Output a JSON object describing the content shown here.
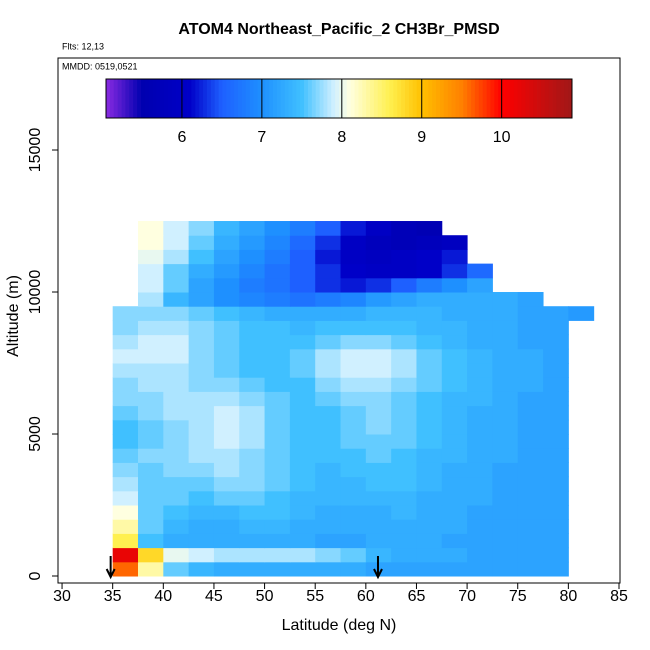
{
  "chart_data": {
    "type": "heatmap",
    "title": "ATOM4 Northeast_Pacific_2 CH3Br_PMSD",
    "subtitle": [
      "Flts: 12,13",
      "MMDD: 0519,0521"
    ],
    "x_label": "Latitude (deg N)",
    "y_label": "Altitude (m)",
    "xlim": [
      29.6,
      85.1
    ],
    "ylim": [
      -246,
      18240
    ],
    "xticks": [
      30,
      35,
      40,
      45,
      50,
      55,
      60,
      65,
      70,
      75,
      80,
      85
    ],
    "yticks": [
      0,
      5000,
      10000,
      15000
    ],
    "x": [
      35,
      37.5,
      40,
      42.5,
      45,
      47.5,
      50,
      52.5,
      55,
      57.5,
      60,
      62.5,
      65,
      67.5,
      70,
      72.5,
      75,
      77.5,
      80,
      82.5
    ],
    "y": [
      0,
      500,
      1000,
      1500,
      2000,
      2500,
      3000,
      3500,
      4000,
      4500,
      5000,
      5500,
      6000,
      6500,
      7000,
      7500,
      8000,
      8500,
      9000,
      9500,
      10000,
      10500,
      11000,
      11500,
      12000,
      12500
    ],
    "z": [
      [
        9.6,
        8.3,
        7.6,
        7.4,
        7.3,
        7.3,
        7.3,
        7.3,
        7.3,
        7.3,
        7.2,
        7.2,
        7.2,
        7.2,
        7.2,
        7.2,
        7.2,
        7.2,
        null
      ],
      [
        10.2,
        8.8,
        8.0,
        7.9,
        7.8,
        7.8,
        7.8,
        7.8,
        7.7,
        7.6,
        7.4,
        7.3,
        7.3,
        7.3,
        7.2,
        7.2,
        7.2,
        7.2,
        null
      ],
      [
        8.6,
        7.5,
        7.3,
        7.3,
        7.3,
        7.3,
        7.3,
        7.3,
        7.2,
        7.2,
        7.3,
        7.3,
        7.3,
        7.2,
        7.2,
        7.2,
        7.2,
        7.2,
        null
      ],
      [
        8.3,
        7.6,
        7.4,
        7.3,
        7.3,
        7.4,
        7.4,
        7.3,
        7.3,
        7.3,
        7.3,
        7.3,
        7.3,
        7.3,
        7.2,
        7.2,
        7.2,
        7.2,
        null
      ],
      [
        8.1,
        7.6,
        7.5,
        7.4,
        7.4,
        7.5,
        7.5,
        7.4,
        7.3,
        7.3,
        7.3,
        7.4,
        7.3,
        7.3,
        7.2,
        7.2,
        7.2,
        7.2,
        null
      ],
      [
        7.9,
        7.6,
        7.6,
        7.5,
        7.6,
        7.6,
        7.5,
        7.4,
        7.4,
        7.4,
        7.4,
        7.4,
        7.3,
        7.3,
        7.3,
        7.2,
        7.2,
        7.2,
        null
      ],
      [
        7.8,
        7.6,
        7.6,
        7.6,
        7.7,
        7.7,
        7.6,
        7.5,
        7.4,
        7.4,
        7.5,
        7.5,
        7.4,
        7.3,
        7.3,
        7.2,
        7.2,
        7.2,
        null
      ],
      [
        7.7,
        7.6,
        7.7,
        7.7,
        7.8,
        7.7,
        7.6,
        7.5,
        7.4,
        7.5,
        7.5,
        7.5,
        7.4,
        7.3,
        7.3,
        7.2,
        7.2,
        7.2,
        null
      ],
      [
        7.6,
        7.7,
        7.7,
        7.8,
        7.8,
        7.7,
        7.6,
        7.5,
        7.5,
        7.5,
        7.6,
        7.5,
        7.4,
        7.4,
        7.3,
        7.3,
        7.2,
        7.2,
        null
      ],
      [
        7.5,
        7.6,
        7.7,
        7.8,
        7.9,
        7.8,
        7.6,
        7.5,
        7.5,
        7.6,
        7.6,
        7.6,
        7.5,
        7.4,
        7.3,
        7.3,
        7.2,
        7.2,
        null
      ],
      [
        7.5,
        7.6,
        7.7,
        7.8,
        7.9,
        7.8,
        7.6,
        7.5,
        7.5,
        7.6,
        7.7,
        7.6,
        7.5,
        7.4,
        7.3,
        7.3,
        7.2,
        7.2,
        null
      ],
      [
        7.6,
        7.7,
        7.8,
        7.8,
        7.9,
        7.8,
        7.6,
        7.5,
        7.5,
        7.6,
        7.7,
        7.6,
        7.5,
        7.4,
        7.3,
        7.3,
        7.2,
        7.2,
        null
      ],
      [
        7.7,
        7.7,
        7.8,
        7.8,
        7.8,
        7.7,
        7.6,
        7.5,
        7.6,
        7.7,
        7.7,
        7.6,
        7.5,
        7.4,
        7.4,
        7.3,
        7.2,
        7.2,
        null
      ],
      [
        7.7,
        7.8,
        7.8,
        7.7,
        7.7,
        7.6,
        7.5,
        7.5,
        7.7,
        7.8,
        7.8,
        7.7,
        7.6,
        7.5,
        7.4,
        7.3,
        7.3,
        7.2,
        null
      ],
      [
        7.8,
        7.8,
        7.8,
        7.7,
        7.6,
        7.5,
        7.5,
        7.6,
        7.8,
        7.9,
        7.9,
        7.8,
        7.6,
        7.5,
        7.4,
        7.3,
        7.3,
        7.2,
        null
      ],
      [
        7.9,
        7.9,
        7.9,
        7.7,
        7.6,
        7.5,
        7.5,
        7.6,
        7.8,
        7.9,
        7.9,
        7.8,
        7.6,
        7.5,
        7.4,
        7.3,
        7.3,
        7.2,
        null
      ],
      [
        7.8,
        7.9,
        7.9,
        7.7,
        7.6,
        7.5,
        7.5,
        7.5,
        7.6,
        7.7,
        7.7,
        7.6,
        7.5,
        7.4,
        7.3,
        7.3,
        7.2,
        7.2,
        null
      ],
      [
        7.7,
        7.8,
        7.8,
        7.7,
        7.6,
        7.5,
        7.5,
        7.4,
        7.5,
        7.5,
        7.5,
        7.5,
        7.4,
        7.4,
        7.3,
        7.3,
        7.2,
        7.2,
        null
      ],
      [
        7.7,
        7.7,
        7.7,
        7.6,
        7.5,
        7.4,
        7.3,
        7.3,
        7.3,
        7.3,
        7.4,
        7.4,
        7.4,
        7.3,
        7.3,
        7.3,
        7.2,
        7.2,
        7.1
      ],
      [
        null,
        7.8,
        7.4,
        7.2,
        7.0,
        6.9,
        6.8,
        6.7,
        6.8,
        6.9,
        7.1,
        7.2,
        7.3,
        7.3,
        7.3,
        7.3,
        7.2,
        null,
        null
      ],
      [
        null,
        7.9,
        7.6,
        7.2,
        7.0,
        6.8,
        6.7,
        6.5,
        6.3,
        6.2,
        6.3,
        6.5,
        6.8,
        7.0,
        7.2,
        null,
        null,
        null,
        null
      ],
      [
        null,
        7.9,
        7.6,
        7.3,
        7.1,
        6.9,
        6.7,
        6.5,
        6.3,
        6.1,
        6.0,
        6.0,
        6.1,
        6.3,
        6.6,
        null,
        null,
        null,
        null
      ],
      [
        null,
        8.0,
        7.8,
        7.5,
        7.2,
        7.0,
        6.8,
        6.5,
        6.2,
        6.0,
        5.9,
        6.0,
        6.1,
        6.2,
        null,
        null,
        null,
        null,
        null
      ],
      [
        null,
        8.1,
        7.9,
        7.6,
        7.3,
        7.1,
        6.9,
        6.6,
        6.3,
        6.0,
        5.8,
        5.7,
        5.8,
        5.9,
        null,
        null,
        null,
        null,
        null
      ],
      [
        null,
        8.1,
        7.9,
        7.7,
        7.4,
        7.2,
        7.0,
        6.8,
        6.5,
        6.2,
        6.0,
        5.7,
        5.6,
        null,
        null,
        null,
        null,
        null,
        null
      ]
    ],
    "colorbar_lim": [
      5.05,
      10.88
    ],
    "colorbar_ticks": [
      6,
      7,
      8,
      9,
      10
    ],
    "colorscale": [
      [
        5.05,
        "#8a2be2"
      ],
      [
        5.5,
        "#0000b0"
      ],
      [
        6.1,
        "#0000c8"
      ],
      [
        6.5,
        "#1e60ff"
      ],
      [
        7,
        "#1e90ff"
      ],
      [
        7.5,
        "#40c0ff"
      ],
      [
        7.9,
        "#d0f0ff"
      ],
      [
        8.1,
        "#ffffe0"
      ],
      [
        8.6,
        "#fff050"
      ],
      [
        9,
        "#ffc000"
      ],
      [
        9.5,
        "#ff8000"
      ],
      [
        10,
        "#ff0000"
      ],
      [
        10.88,
        "#a01818"
      ]
    ],
    "arrows_x": [
      34.8,
      61.2
    ]
  }
}
